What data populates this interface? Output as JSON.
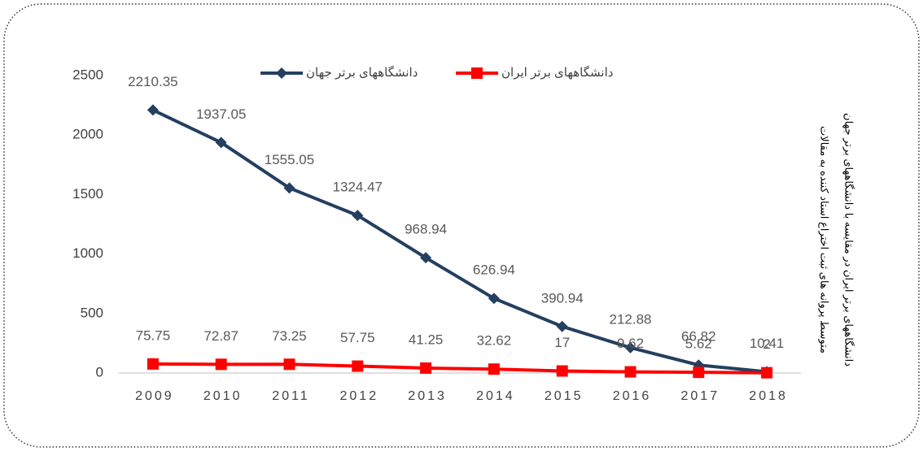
{
  "chart_data": {
    "type": "line",
    "title_lines": [
      "متوسط  پروانه های ثبت اختراع استاد کننده به مقالات",
      "دانشگاههای برتر ایران در مقایسه با دانشگاههای برتر جهان"
    ],
    "categories": [
      "2009",
      "2010",
      "2011",
      "2012",
      "2013",
      "2014",
      "2015",
      "2016",
      "2017",
      "2018"
    ],
    "series": [
      {
        "name": "دانشگاههای برتر جهان",
        "color": "#243f60",
        "marker": "diamond",
        "values": [
          2210.35,
          1937.05,
          1555.05,
          1324.47,
          968.94,
          626.94,
          390.94,
          212.88,
          66.82,
          10.41
        ]
      },
      {
        "name": "دانشگاههای برتر ایران",
        "color": "#ff0000",
        "marker": "square",
        "values": [
          75.75,
          72.87,
          73.25,
          57.75,
          41.25,
          32.62,
          17,
          9.62,
          5.62,
          2
        ]
      }
    ],
    "ylim": [
      0,
      2500
    ],
    "yticks": [
      0,
      500,
      1000,
      1500,
      2000,
      2500
    ],
    "grid": false,
    "legend": "top"
  }
}
